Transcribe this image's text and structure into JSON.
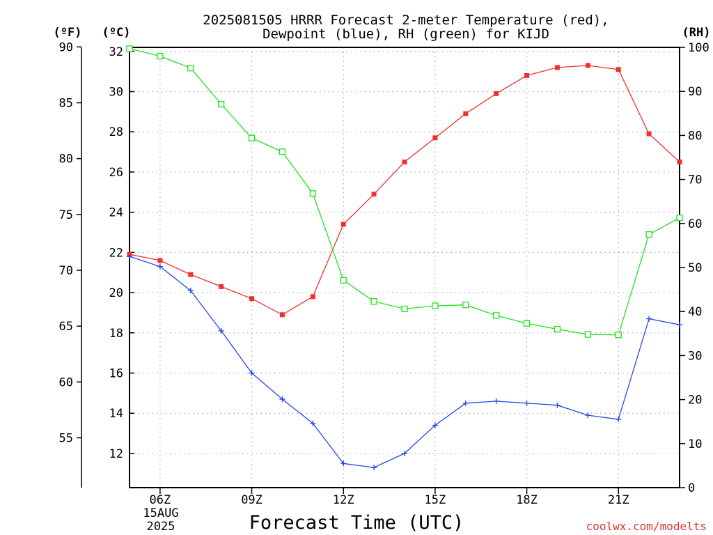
{
  "chart_data": {
    "type": "line",
    "title_line1": "2025081505 HRRR Forecast 2-meter Temperature (red),",
    "title_line2": "Dewpoint (blue), RH (green) for KIJD",
    "xlabel": "Forecast Time (UTC)",
    "date_label_line1": "15AUG",
    "date_label_line2": "2025",
    "credit": "coolwx.com/modelts",
    "unit_f": "(ºF)",
    "unit_c": "(ºC)",
    "unit_rh": "(RH)",
    "x_hours": [
      5,
      6,
      7,
      8,
      9,
      10,
      11,
      12,
      13,
      14,
      15,
      16,
      17,
      18,
      19,
      20,
      21,
      22,
      23
    ],
    "x_ticks": [
      {
        "hour": 6,
        "label": "06Z"
      },
      {
        "hour": 9,
        "label": "09Z"
      },
      {
        "hour": 12,
        "label": "12Z"
      },
      {
        "hour": 15,
        "label": "15Z"
      },
      {
        "hour": 18,
        "label": "18Z"
      },
      {
        "hour": 21,
        "label": "21Z"
      }
    ],
    "xlim": [
      5,
      23
    ],
    "ylim_c": [
      10.3,
      32.2
    ],
    "ylim_rh": [
      0,
      100
    ],
    "yticks_c": [
      12,
      14,
      16,
      18,
      20,
      22,
      24,
      26,
      28,
      30,
      32
    ],
    "yticks_f": [
      55,
      60,
      65,
      70,
      75,
      80,
      85,
      90
    ],
    "yticks_rh": [
      0,
      10,
      20,
      30,
      40,
      50,
      60,
      70,
      80,
      90,
      100
    ],
    "series": [
      {
        "key": "temperature",
        "color": "#f03030",
        "marker": "filled-square",
        "values": [
          21.9,
          21.6,
          20.9,
          20.3,
          19.7,
          18.9,
          19.8,
          23.4,
          24.9,
          26.5,
          27.7,
          28.9,
          29.9,
          30.8,
          31.2,
          31.3,
          31.1,
          27.9,
          26.5
        ]
      },
      {
        "key": "dewpoint",
        "color": "#2848e8",
        "marker": "plus",
        "values": [
          21.8,
          21.3,
          20.1,
          18.1,
          16.0,
          14.7,
          13.5,
          11.5,
          11.3,
          12.0,
          13.4,
          14.5,
          14.6,
          14.5,
          14.4,
          13.9,
          13.7,
          18.7,
          18.4
        ]
      },
      {
        "key": "rh",
        "color": "#20e020",
        "marker": "open-square",
        "values": [
          99.7,
          98.0,
          95.3,
          87.1,
          79.4,
          76.3,
          66.8,
          47.1,
          42.3,
          40.6,
          41.3,
          41.5,
          39.1,
          37.3,
          36.0,
          34.8,
          34.7,
          57.5,
          61.3
        ]
      }
    ]
  }
}
